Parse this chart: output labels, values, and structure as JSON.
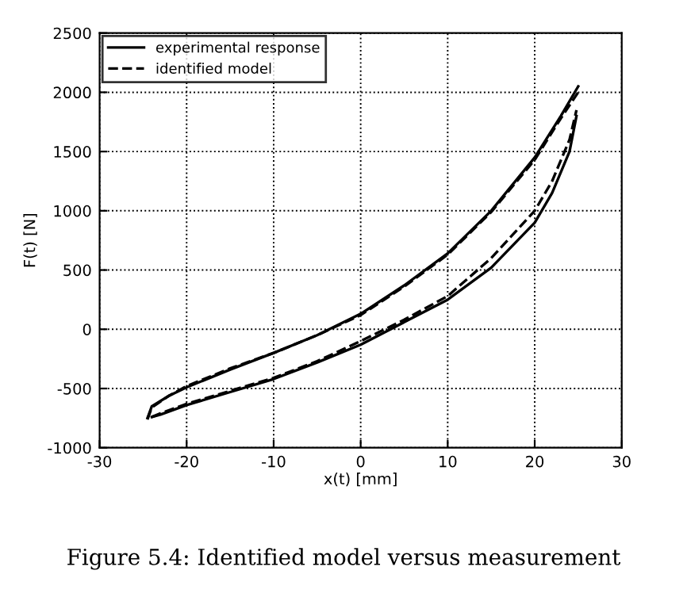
{
  "chart_data": {
    "type": "line",
    "xlabel": "x(t) [mm]",
    "ylabel": "F(t) [N]",
    "xlim": [
      -30,
      30
    ],
    "xticks": [
      -30,
      -20,
      -10,
      0,
      10,
      20,
      30
    ],
    "ylim": [
      -1000,
      2500
    ],
    "yticks": [
      -1000,
      -500,
      0,
      500,
      1000,
      1500,
      2000,
      2500
    ],
    "grid": true,
    "legend": "top left",
    "annotations": [
      "Figure 5.4: Identified model versus measurement"
    ],
    "series": [
      {
        "name": "experimental response",
        "color": "#000000",
        "line_style": "solid",
        "x": [
          -24.5,
          -24,
          -22,
          -20,
          -15,
          -10,
          -5,
          0,
          5,
          10,
          15,
          20,
          23,
          25
        ],
        "values": [
          -750,
          -650,
          -560,
          -490,
          -340,
          -200,
          -50,
          130,
          370,
          640,
          1000,
          1450,
          1800,
          2050
        ]
      },
      {
        "color": "#000000",
        "line_style": "solid",
        "x": [
          -24,
          -23,
          -20,
          -15,
          -10,
          -5,
          0,
          5,
          10,
          15,
          20,
          22,
          24,
          24.8
        ],
        "values": [
          -740,
          -720,
          -640,
          -530,
          -420,
          -280,
          -130,
          60,
          250,
          520,
          900,
          1150,
          1500,
          1800
        ]
      },
      {
        "name": "identified model",
        "color": "#000000",
        "line_style": "dashed",
        "x": [
          -24.5,
          -24,
          -22,
          -20,
          -15,
          -10,
          -5,
          0,
          5,
          10,
          15,
          20,
          23,
          25
        ],
        "values": [
          -760,
          -660,
          -560,
          -480,
          -330,
          -200,
          -50,
          120,
          360,
          630,
          990,
          1430,
          1780,
          2000
        ]
      },
      {
        "color": "#000000",
        "line_style": "dashed",
        "x": [
          -24,
          -23,
          -20,
          -15,
          -10,
          -5,
          0,
          5,
          10,
          15,
          20,
          22,
          24,
          24.8
        ],
        "values": [
          -740,
          -710,
          -630,
          -520,
          -410,
          -270,
          -100,
          80,
          280,
          600,
          1000,
          1250,
          1600,
          1850
        ]
      }
    ]
  }
}
